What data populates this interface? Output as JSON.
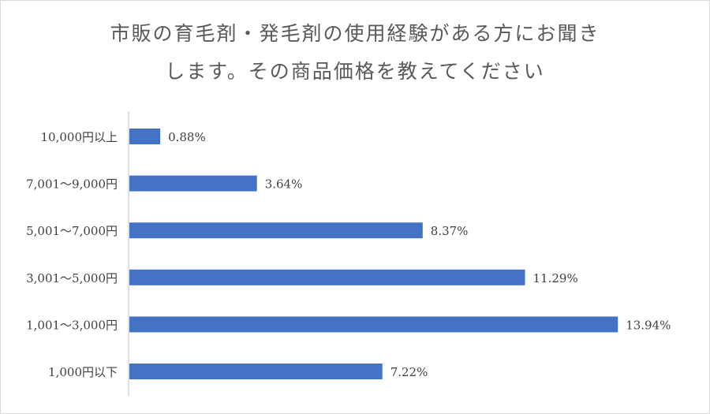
{
  "chart_data": {
    "type": "bar",
    "orientation": "horizontal",
    "title_lines": [
      "市販の育毛剤・発毛剤の使用経験がある方にお聞き",
      "します。その商品価格を教えてください"
    ],
    "categories": [
      "10,000円以上",
      "7,001〜9,000円",
      "5,001〜7,000円",
      "3,001〜5,000円",
      "1,001〜3,000円",
      "1,000円以下"
    ],
    "values": [
      0.88,
      3.64,
      8.37,
      11.29,
      13.94,
      7.22
    ],
    "value_labels": [
      "0.88%",
      "3.64%",
      "8.37%",
      "11.29%",
      "13.94%",
      "7.22%"
    ],
    "xlim": [
      0,
      14
    ],
    "grid": false,
    "legend": "none",
    "bar_color": "#4472c4"
  }
}
